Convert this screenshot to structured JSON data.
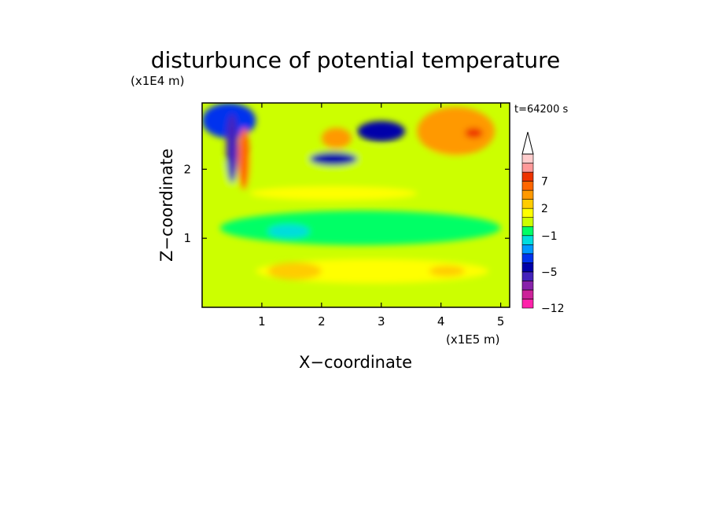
{
  "chart_data": {
    "type": "heatmap",
    "title": "disturbunce of potential temperature",
    "time_label": "t=64200 s",
    "xlabel": "X−coordinate",
    "ylabel": "Z−coordinate",
    "x_unit": "(x1E5 m)",
    "y_unit": "(x1E4 m)",
    "xlim": [
      0,
      5.15
    ],
    "ylim": [
      0,
      2.96
    ],
    "x_ticks": [
      "1",
      "2",
      "3",
      "4",
      "5"
    ],
    "y_ticks": [
      "1",
      "2"
    ],
    "colorbar": {
      "bounds": [
        -12,
        -10,
        -8,
        -7,
        -5,
        -4,
        -3,
        -2,
        -1,
        0,
        1,
        2,
        3,
        5,
        7,
        9,
        11
      ],
      "colors": [
        "#ff22aa",
        "#cc2299",
        "#8822aa",
        "#4422bb",
        "#0000aa",
        "#0033ee",
        "#0099ff",
        "#00dddd",
        "#00ff66",
        "#ccff00",
        "#ffff00",
        "#ffcc00",
        "#ff9900",
        "#ff6600",
        "#ee3300",
        "#ff9999",
        "#ffcccc"
      ],
      "labels": [
        "−12",
        "−5",
        "−1",
        "2",
        "7"
      ],
      "extend": "max"
    },
    "regions": [
      {
        "x": [
          0,
          5.15
        ],
        "z": [
          0,
          0.3
        ],
        "value": 0.5
      },
      {
        "x": [
          0.9,
          4.8
        ],
        "z": [
          0.35,
          0.7
        ],
        "value": 1.5
      },
      {
        "x": [
          1.1,
          2.0
        ],
        "z": [
          0.4,
          0.65
        ],
        "value": 2.5
      },
      {
        "x": [
          3.8,
          4.4
        ],
        "z": [
          0.45,
          0.6
        ],
        "value": 2.5
      },
      {
        "x": [
          0.3,
          5.0
        ],
        "z": [
          0.9,
          1.4
        ],
        "value": -0.5
      },
      {
        "x": [
          1.1,
          1.8
        ],
        "z": [
          1.0,
          1.2
        ],
        "value": -1.5
      },
      {
        "x": [
          0,
          5.15
        ],
        "z": [
          1.55,
          2.3
        ],
        "value": 0.5
      },
      {
        "x": [
          0.8,
          3.6
        ],
        "z": [
          1.55,
          1.75
        ],
        "value": 1.5
      },
      {
        "x": [
          2.6,
          3.4
        ],
        "z": [
          2.4,
          2.7
        ],
        "value": -5
      },
      {
        "x": [
          1.8,
          2.6
        ],
        "z": [
          2.05,
          2.25
        ],
        "value": -5
      },
      {
        "x": [
          0,
          0.9
        ],
        "z": [
          2.45,
          2.96
        ],
        "value": -4
      },
      {
        "x": [
          2.0,
          2.5
        ],
        "z": [
          2.3,
          2.6
        ],
        "value": 4
      },
      {
        "x": [
          3.6,
          4.9
        ],
        "z": [
          2.2,
          2.9
        ],
        "value": 3
      },
      {
        "x": [
          4.4,
          4.7
        ],
        "z": [
          2.45,
          2.6
        ],
        "value": 8
      },
      {
        "x": [
          0.6,
          0.8
        ],
        "z": [
          1.7,
          2.6
        ],
        "value": 6
      },
      {
        "x": [
          0.4,
          0.6
        ],
        "z": [
          1.8,
          2.8
        ],
        "value": -7
      }
    ]
  }
}
